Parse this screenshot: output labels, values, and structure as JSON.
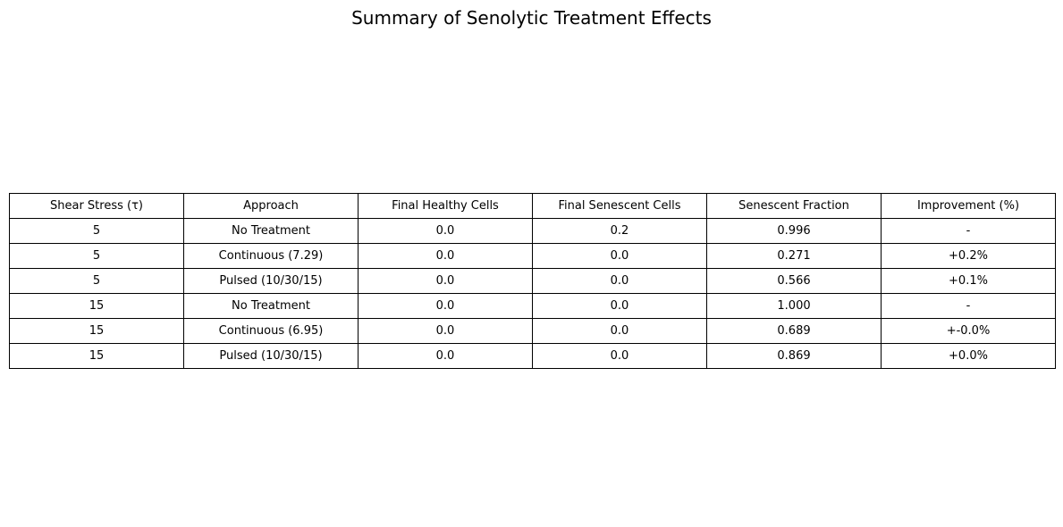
{
  "chart_data": {
    "type": "table",
    "title": "Summary of Senolytic Treatment Effects",
    "columns": [
      "Shear Stress (τ)",
      "Approach",
      "Final Healthy Cells",
      "Final Senescent Cells",
      "Senescent Fraction",
      "Improvement (%)"
    ],
    "rows": [
      [
        "5",
        "No Treatment",
        "0.0",
        "0.2",
        "0.996",
        "-"
      ],
      [
        "5",
        "Continuous (7.29)",
        "0.0",
        "0.0",
        "0.271",
        "+0.2%"
      ],
      [
        "5",
        "Pulsed (10/30/15)",
        "0.0",
        "0.0",
        "0.566",
        "+0.1%"
      ],
      [
        "15",
        "No Treatment",
        "0.0",
        "0.0",
        "1.000",
        "-"
      ],
      [
        "15",
        "Continuous (6.95)",
        "0.0",
        "0.0",
        "0.689",
        "+-0.0%"
      ],
      [
        "15",
        "Pulsed (10/30/15)",
        "0.0",
        "0.0",
        "0.869",
        "+0.0%"
      ]
    ]
  }
}
